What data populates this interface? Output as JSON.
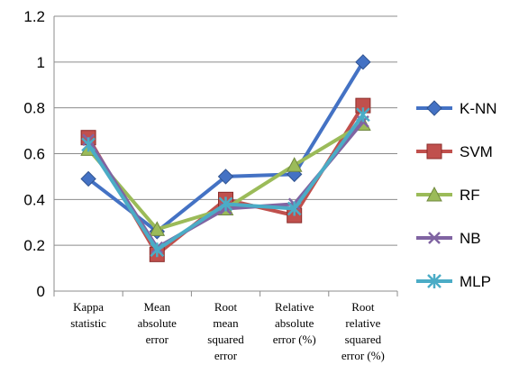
{
  "chart_data": {
    "type": "line",
    "title": "",
    "xlabel": "",
    "ylabel": "",
    "categories": [
      [
        "Kappa",
        "statistic"
      ],
      [
        "Mean",
        "absolute",
        "error"
      ],
      [
        "Root",
        "mean",
        "squared",
        "error"
      ],
      [
        "Relative",
        "absolute",
        "error (%)"
      ],
      [
        "Root",
        "relative",
        "squared",
        "error (%)"
      ]
    ],
    "ylim": [
      0,
      1.2
    ],
    "yticks": [
      "0",
      "0.2",
      "0.4",
      "0.6",
      "0.8",
      "1",
      "1.2"
    ],
    "grid": true,
    "legend_position": "right",
    "series": [
      {
        "name": "K-NN",
        "values": [
          0.49,
          0.26,
          0.5,
          0.51,
          1.0
        ],
        "color": "#4472c4",
        "marker": "diamond"
      },
      {
        "name": "SVM",
        "values": [
          0.67,
          0.16,
          0.4,
          0.33,
          0.81
        ],
        "color": "#c0504d",
        "marker": "square"
      },
      {
        "name": "RF",
        "values": [
          0.62,
          0.27,
          0.36,
          0.55,
          0.73
        ],
        "color": "#9bbb59",
        "marker": "triangle"
      },
      {
        "name": "NB",
        "values": [
          0.66,
          0.19,
          0.36,
          0.38,
          0.74
        ],
        "color": "#8064a2",
        "marker": "x"
      },
      {
        "name": "MLP",
        "values": [
          0.64,
          0.18,
          0.38,
          0.36,
          0.77
        ],
        "color": "#4bacc6",
        "marker": "star"
      }
    ]
  }
}
